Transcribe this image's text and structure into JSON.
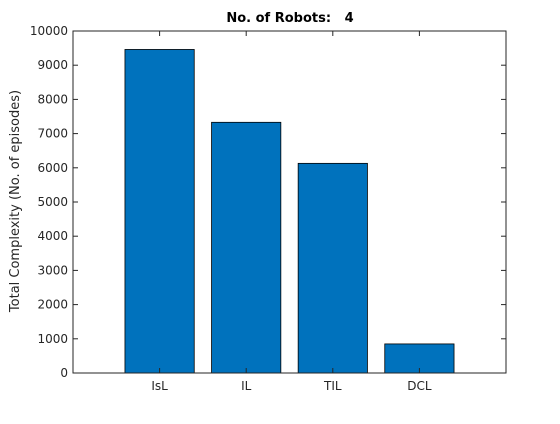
{
  "chart_data": {
    "type": "bar",
    "title": "No. of Robots:   4",
    "xlabel": "",
    "ylabel": "Total Complexity (No. of episodes)",
    "categories": [
      "IsL",
      "IL",
      "TIL",
      "DCL"
    ],
    "values": [
      9460,
      7330,
      6130,
      850
    ],
    "ylim": [
      0,
      10000
    ],
    "yticks": [
      0,
      1000,
      2000,
      3000,
      4000,
      5000,
      6000,
      7000,
      8000,
      9000,
      10000
    ],
    "xlim": [
      0,
      5
    ],
    "x_positions": [
      1,
      2,
      3,
      4
    ],
    "bar_width_fraction": 0.8,
    "bar_color": "#0072bd",
    "bar_edge_color": "#000000",
    "axis_color": "#262626",
    "grid": false,
    "legend": "none"
  }
}
